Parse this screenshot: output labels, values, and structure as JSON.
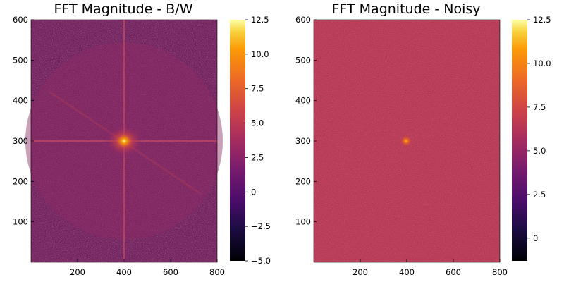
{
  "chart_data": [
    {
      "type": "heatmap",
      "title": "FFT Magnitude - B/W",
      "xlim": [
        0,
        800
      ],
      "ylim": [
        0,
        600
      ],
      "xticks": [
        200,
        400,
        600,
        800
      ],
      "yticks": [
        100,
        200,
        300,
        400,
        500,
        600
      ],
      "colorbar": {
        "colormap": "inferno",
        "range": [
          -5.0,
          12.5
        ],
        "ticks": [
          12.5,
          10.0,
          7.5,
          5.0,
          2.5,
          0,
          -2.5,
          -5.0
        ],
        "tick_labels": [
          "12.5",
          "10.0",
          "7.5",
          "5.0",
          "2.5",
          "0",
          "−2.5",
          "−5.0"
        ]
      },
      "description_values": {
        "center": [
          400,
          300
        ],
        "background_level": 1.5,
        "peak_level": 12.0,
        "cross_lines": true
      }
    },
    {
      "type": "heatmap",
      "title": "FFT Magnitude - Noisy",
      "xlim": [
        0,
        800
      ],
      "ylim": [
        0,
        600
      ],
      "xticks": [
        200,
        400,
        600,
        800
      ],
      "yticks": [
        100,
        200,
        300,
        400,
        500,
        600
      ],
      "colorbar": {
        "colormap": "inferno",
        "range": [
          -1.3,
          12.5
        ],
        "ticks": [
          12.5,
          10.0,
          7.5,
          5.0,
          2.5,
          0
        ],
        "tick_labels": [
          "12.5",
          "10.0",
          "7.5",
          "5.0",
          "2.5",
          "0"
        ]
      },
      "description_values": {
        "center": [
          400,
          300
        ],
        "background_level": 5.5,
        "peak_level": 9.5,
        "cross_lines": false
      }
    }
  ]
}
